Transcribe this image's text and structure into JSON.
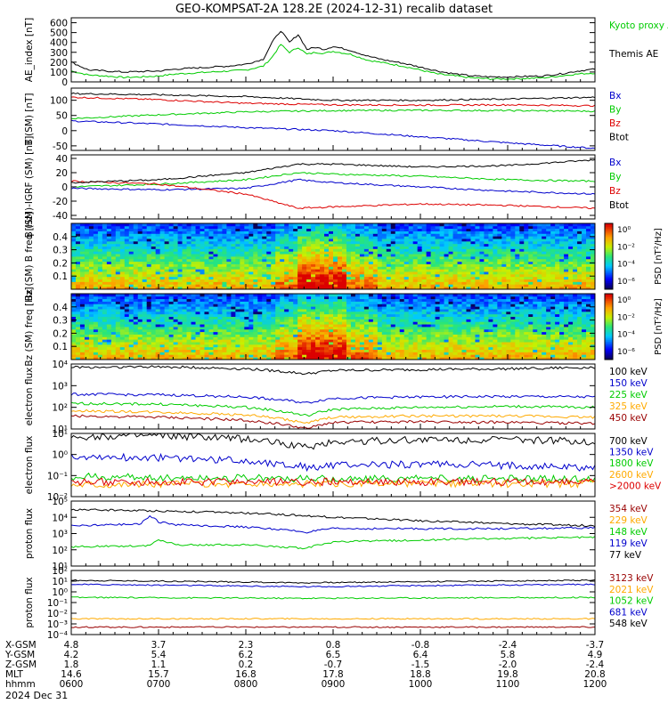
{
  "title": "GEO-KOMPSAT-2A 128.2E (2024-12-31) recalib dataset",
  "date_label": "2024 Dec 31",
  "ephemeris": {
    "rows": [
      {
        "label": "X-GSM",
        "values": [
          "4.8",
          "3.7",
          "2.3",
          "0.8",
          "-0.8",
          "-2.4",
          "-3.7"
        ]
      },
      {
        "label": "Y-GSM",
        "values": [
          "4.2",
          "5.4",
          "6.2",
          "6.5",
          "6.4",
          "5.8",
          "4.9"
        ]
      },
      {
        "label": "Z-GSM",
        "values": [
          "1.8",
          "1.1",
          "0.2",
          "-0.7",
          "-1.5",
          "-2.0",
          "-2.4"
        ]
      },
      {
        "label": "MLT",
        "values": [
          "14.6",
          "15.7",
          "16.8",
          "17.8",
          "18.8",
          "19.8",
          "20.8"
        ]
      },
      {
        "label": "hhmm",
        "values": [
          "0600",
          "0700",
          "0800",
          "0900",
          "1000",
          "1100",
          "1200"
        ]
      }
    ]
  },
  "colors": {
    "black": "#000000",
    "blue": "#0000cc",
    "green": "#00cc00",
    "red": "#dd0000",
    "orange": "#ffaa00",
    "darkred": "#990000",
    "cyan": "#0099ff",
    "lime": "#00e000"
  },
  "chart_data": [
    {
      "type": "line",
      "id": "ae",
      "ylabel": "AE_index [nT]",
      "ylim": [
        0,
        650
      ],
      "yticks": [
        "0",
        "100",
        "200",
        "300",
        "400",
        "500",
        "600"
      ],
      "x_hours": [
        6,
        12
      ],
      "series": [
        {
          "name": "Kyoto proxy AE",
          "color": "#00cc00",
          "x": [
            6.0,
            6.2,
            6.4,
            6.6,
            6.8,
            7.0,
            7.2,
            7.4,
            7.6,
            7.8,
            8.0,
            8.2,
            8.3,
            8.4,
            8.5,
            8.6,
            8.7,
            8.8,
            8.9,
            9.0,
            9.2,
            9.4,
            9.6,
            9.8,
            10.0,
            10.2,
            10.4,
            10.6,
            10.8,
            11.0,
            11.2,
            11.4,
            11.6,
            11.8,
            12.0
          ],
          "y": [
            110,
            70,
            60,
            45,
            50,
            60,
            80,
            90,
            100,
            110,
            120,
            160,
            250,
            380,
            300,
            350,
            280,
            300,
            290,
            310,
            280,
            220,
            190,
            160,
            120,
            80,
            60,
            40,
            30,
            30,
            35,
            40,
            60,
            80,
            90
          ]
        },
        {
          "name": "Themis AE",
          "color": "#000000",
          "x": [
            6.0,
            6.2,
            6.4,
            6.6,
            6.8,
            7.0,
            7.2,
            7.4,
            7.6,
            7.8,
            8.0,
            8.2,
            8.3,
            8.4,
            8.5,
            8.6,
            8.7,
            8.8,
            8.9,
            9.0,
            9.2,
            9.4,
            9.6,
            9.8,
            10.0,
            10.2,
            10.4,
            10.6,
            10.8,
            11.0,
            11.2,
            11.4,
            11.6,
            11.8,
            12.0
          ],
          "y": [
            200,
            120,
            110,
            100,
            105,
            110,
            130,
            140,
            150,
            160,
            180,
            230,
            400,
            520,
            400,
            480,
            330,
            350,
            330,
            360,
            320,
            260,
            220,
            190,
            150,
            110,
            80,
            60,
            50,
            50,
            55,
            60,
            80,
            110,
            130
          ]
        }
      ]
    },
    {
      "type": "line",
      "id": "bsm",
      "ylabel": "B (SM) [nT]",
      "ylim": [
        -65,
        140
      ],
      "yticks": [
        "-50",
        "0",
        "50",
        "100"
      ],
      "series": [
        {
          "name": "Bx",
          "color": "#0000cc",
          "x": [
            6,
            7,
            8,
            9,
            10,
            11,
            12
          ],
          "y": [
            32,
            22,
            10,
            0,
            -20,
            -40,
            -58
          ]
        },
        {
          "name": "By",
          "color": "#00cc00",
          "x": [
            6,
            7,
            8,
            9,
            10,
            11,
            12
          ],
          "y": [
            40,
            52,
            62,
            66,
            67,
            66,
            64
          ]
        },
        {
          "name": "Bz",
          "color": "#dd0000",
          "x": [
            6,
            7,
            8,
            9,
            10,
            11,
            12
          ],
          "y": [
            110,
            102,
            90,
            85,
            84,
            85,
            82
          ]
        },
        {
          "name": "Btot",
          "color": "#000000",
          "x": [
            6,
            7,
            8,
            9,
            10,
            11,
            12
          ],
          "y": [
            122,
            118,
            112,
            100,
            100,
            104,
            110
          ]
        }
      ]
    },
    {
      "type": "line",
      "id": "bigrf",
      "ylabel": "B (SM)-IGRF (SM) [nT]",
      "ylim": [
        -45,
        45
      ],
      "yticks": [
        "-40",
        "-20",
        "0",
        "20",
        "40"
      ],
      "series": [
        {
          "name": "Bx",
          "color": "#0000cc",
          "x": [
            6,
            7,
            8,
            8.6,
            9,
            10,
            11,
            12
          ],
          "y": [
            -2,
            -4,
            -2,
            10,
            6,
            0,
            -6,
            -10
          ]
        },
        {
          "name": "By",
          "color": "#00cc00",
          "x": [
            6,
            7,
            8,
            8.6,
            9,
            10,
            11,
            12
          ],
          "y": [
            0,
            4,
            10,
            20,
            18,
            15,
            10,
            8
          ]
        },
        {
          "name": "Bz",
          "color": "#dd0000",
          "x": [
            6,
            7,
            8,
            8.6,
            9,
            10,
            11,
            12
          ],
          "y": [
            8,
            4,
            -10,
            -30,
            -28,
            -24,
            -26,
            -30
          ]
        },
        {
          "name": "Btot",
          "color": "#000000",
          "x": [
            6,
            7,
            8,
            8.6,
            9,
            10,
            11,
            12
          ],
          "y": [
            6,
            10,
            20,
            32,
            32,
            28,
            30,
            38
          ]
        }
      ]
    },
    {
      "type": "heatmap",
      "id": "bxspec",
      "ylabel": "Bx (SM) B freq [Hz]",
      "ylim": [
        0.0,
        0.5
      ],
      "yticks": [
        "0.1",
        "0.2",
        "0.3",
        "0.4"
      ],
      "colorbar": {
        "label": "PSD [nT²/Hz]",
        "ticks": [
          "10⁰",
          "10⁻²",
          "10⁻⁴",
          "10⁻⁶"
        ]
      }
    },
    {
      "type": "heatmap",
      "id": "bzspec",
      "ylabel": "Bz (SM) freq [Hz]",
      "ylim": [
        0.0,
        0.5
      ],
      "yticks": [
        "0.1",
        "0.2",
        "0.3",
        "0.4"
      ],
      "colorbar": {
        "label": "PSD [nT²/Hz]",
        "ticks": [
          "10⁰",
          "10⁻²",
          "10⁻⁴",
          "10⁻⁶"
        ]
      }
    },
    {
      "type": "line",
      "id": "elec1",
      "log": true,
      "ylabel": "electron flux",
      "ylim_exp": [
        1,
        4
      ],
      "yticks": [
        "10¹",
        "10²",
        "10³",
        "10⁴"
      ],
      "series": [
        {
          "name": "100 keV",
          "color": "#000000",
          "x": [
            6,
            7,
            8,
            8.7,
            9,
            10,
            11,
            12
          ],
          "y": [
            7000,
            7500,
            6000,
            3500,
            5000,
            5500,
            6000,
            7000
          ]
        },
        {
          "name": "150 keV",
          "color": "#0000cc",
          "x": [
            6,
            7,
            8,
            8.7,
            9,
            10,
            11,
            12
          ],
          "y": [
            400,
            380,
            300,
            160,
            260,
            300,
            320,
            300
          ]
        },
        {
          "name": "225 keV",
          "color": "#00cc00",
          "x": [
            6,
            7,
            8,
            8.7,
            9,
            10,
            11,
            12
          ],
          "y": [
            150,
            140,
            100,
            40,
            80,
            100,
            110,
            100
          ]
        },
        {
          "name": "325 keV",
          "color": "#ffaa00",
          "x": [
            6,
            7,
            8,
            8.7,
            9,
            10,
            11,
            12
          ],
          "y": [
            70,
            60,
            45,
            18,
            35,
            40,
            40,
            35
          ]
        },
        {
          "name": "450 keV",
          "color": "#990000",
          "x": [
            6,
            7,
            8,
            8.7,
            9,
            10,
            11,
            12
          ],
          "y": [
            40,
            35,
            25,
            10,
            20,
            22,
            20,
            18
          ]
        }
      ]
    },
    {
      "type": "line",
      "id": "elec2",
      "log": true,
      "ylabel": "electron flux",
      "ylim_exp": [
        -2,
        1
      ],
      "yticks": [
        "10⁻²",
        "10⁻¹",
        "10⁰",
        "10¹"
      ],
      "series": [
        {
          "name": "700 keV",
          "color": "#000000",
          "x": [
            6,
            7,
            8,
            8.7,
            9,
            10,
            11,
            12
          ],
          "y": [
            7,
            7.5,
            5.5,
            2,
            4,
            5,
            5,
            4
          ]
        },
        {
          "name": "1350 keV",
          "color": "#0000cc",
          "x": [
            6,
            7,
            8,
            8.7,
            9,
            10,
            11,
            12
          ],
          "y": [
            0.8,
            0.7,
            0.5,
            0.25,
            0.3,
            0.35,
            0.3,
            0.22
          ]
        },
        {
          "name": "1800 keV",
          "color": "#00cc00",
          "x": [
            6,
            7,
            8,
            8.7,
            9,
            10,
            11,
            12
          ],
          "y": [
            0.09,
            0.08,
            0.08,
            0.07,
            0.07,
            0.07,
            0.07,
            0.07
          ]
        },
        {
          "name": "2600 keV",
          "color": "#ffaa00",
          "x": [
            6,
            7,
            8,
            8.7,
            9,
            10,
            11,
            12
          ],
          "y": [
            0.04,
            0.04,
            0.04,
            0.04,
            0.04,
            0.04,
            0.04,
            0.04
          ]
        },
        {
          "name": ">2000 keV",
          "color": "#dd0000",
          "x": [
            6,
            7,
            8,
            8.7,
            9,
            10,
            11,
            12
          ],
          "y": [
            0.05,
            0.05,
            0.05,
            0.05,
            0.05,
            0.05,
            0.05,
            0.05
          ]
        }
      ]
    },
    {
      "type": "line",
      "id": "prot1",
      "log": true,
      "ylabel": "proton flux",
      "ylim_exp": [
        1,
        5
      ],
      "yticks": [
        "10¹",
        "10²",
        "10³",
        "10⁴",
        "10⁵"
      ],
      "series": [
        {
          "name": "354 keV",
          "color": "#990000",
          "x": [
            6,
            12
          ],
          "y": [
            null,
            null
          ]
        },
        {
          "name": "229 keV",
          "color": "#ffaa00",
          "x": [
            6,
            12
          ],
          "y": [
            null,
            null
          ]
        },
        {
          "name": "148 keV",
          "color": "#00cc00",
          "x": [
            6,
            6.9,
            7,
            7.2,
            8,
            8.7,
            9,
            10,
            11,
            12
          ],
          "y": [
            150,
            180,
            400,
            200,
            200,
            120,
            300,
            400,
            500,
            600
          ]
        },
        {
          "name": "119 keV",
          "color": "#0000cc",
          "x": [
            6,
            6.8,
            6.9,
            7.0,
            7.2,
            8,
            8.7,
            9,
            10,
            11,
            12
          ],
          "y": [
            3000,
            4000,
            12000,
            5000,
            3500,
            2500,
            1200,
            2000,
            2000,
            2000,
            2200
          ]
        },
        {
          "name": "77 keV",
          "color": "#000000",
          "x": [
            6,
            7,
            8,
            9,
            10,
            11,
            12
          ],
          "y": [
            30000,
            25000,
            18000,
            10000,
            6000,
            4000,
            3000
          ]
        }
      ]
    },
    {
      "type": "line",
      "id": "prot2",
      "log": true,
      "ylabel": "proton flux",
      "ylim_exp": [
        -4,
        2
      ],
      "yticks": [
        "10⁻⁴",
        "10⁻³",
        "10⁻²",
        "10⁻¹",
        "10⁰",
        "10¹",
        "10²"
      ],
      "series": [
        {
          "name": "3123 keV",
          "color": "#990000",
          "x": [
            6,
            12
          ],
          "y": [
            0.0005,
            0.0005
          ]
        },
        {
          "name": "2021 keV",
          "color": "#ffaa00",
          "x": [
            6,
            12
          ],
          "y": [
            0.003,
            0.003
          ]
        },
        {
          "name": "1052 keV",
          "color": "#00cc00",
          "x": [
            6,
            8.7,
            12
          ],
          "y": [
            0.3,
            0.25,
            0.3
          ]
        },
        {
          "name": "681 keV",
          "color": "#0000cc",
          "x": [
            6,
            8.7,
            12
          ],
          "y": [
            5,
            3,
            5
          ]
        },
        {
          "name": "548 keV",
          "color": "#000000",
          "x": [
            6,
            8.7,
            12
          ],
          "y": [
            12,
            7,
            12
          ]
        }
      ]
    }
  ]
}
